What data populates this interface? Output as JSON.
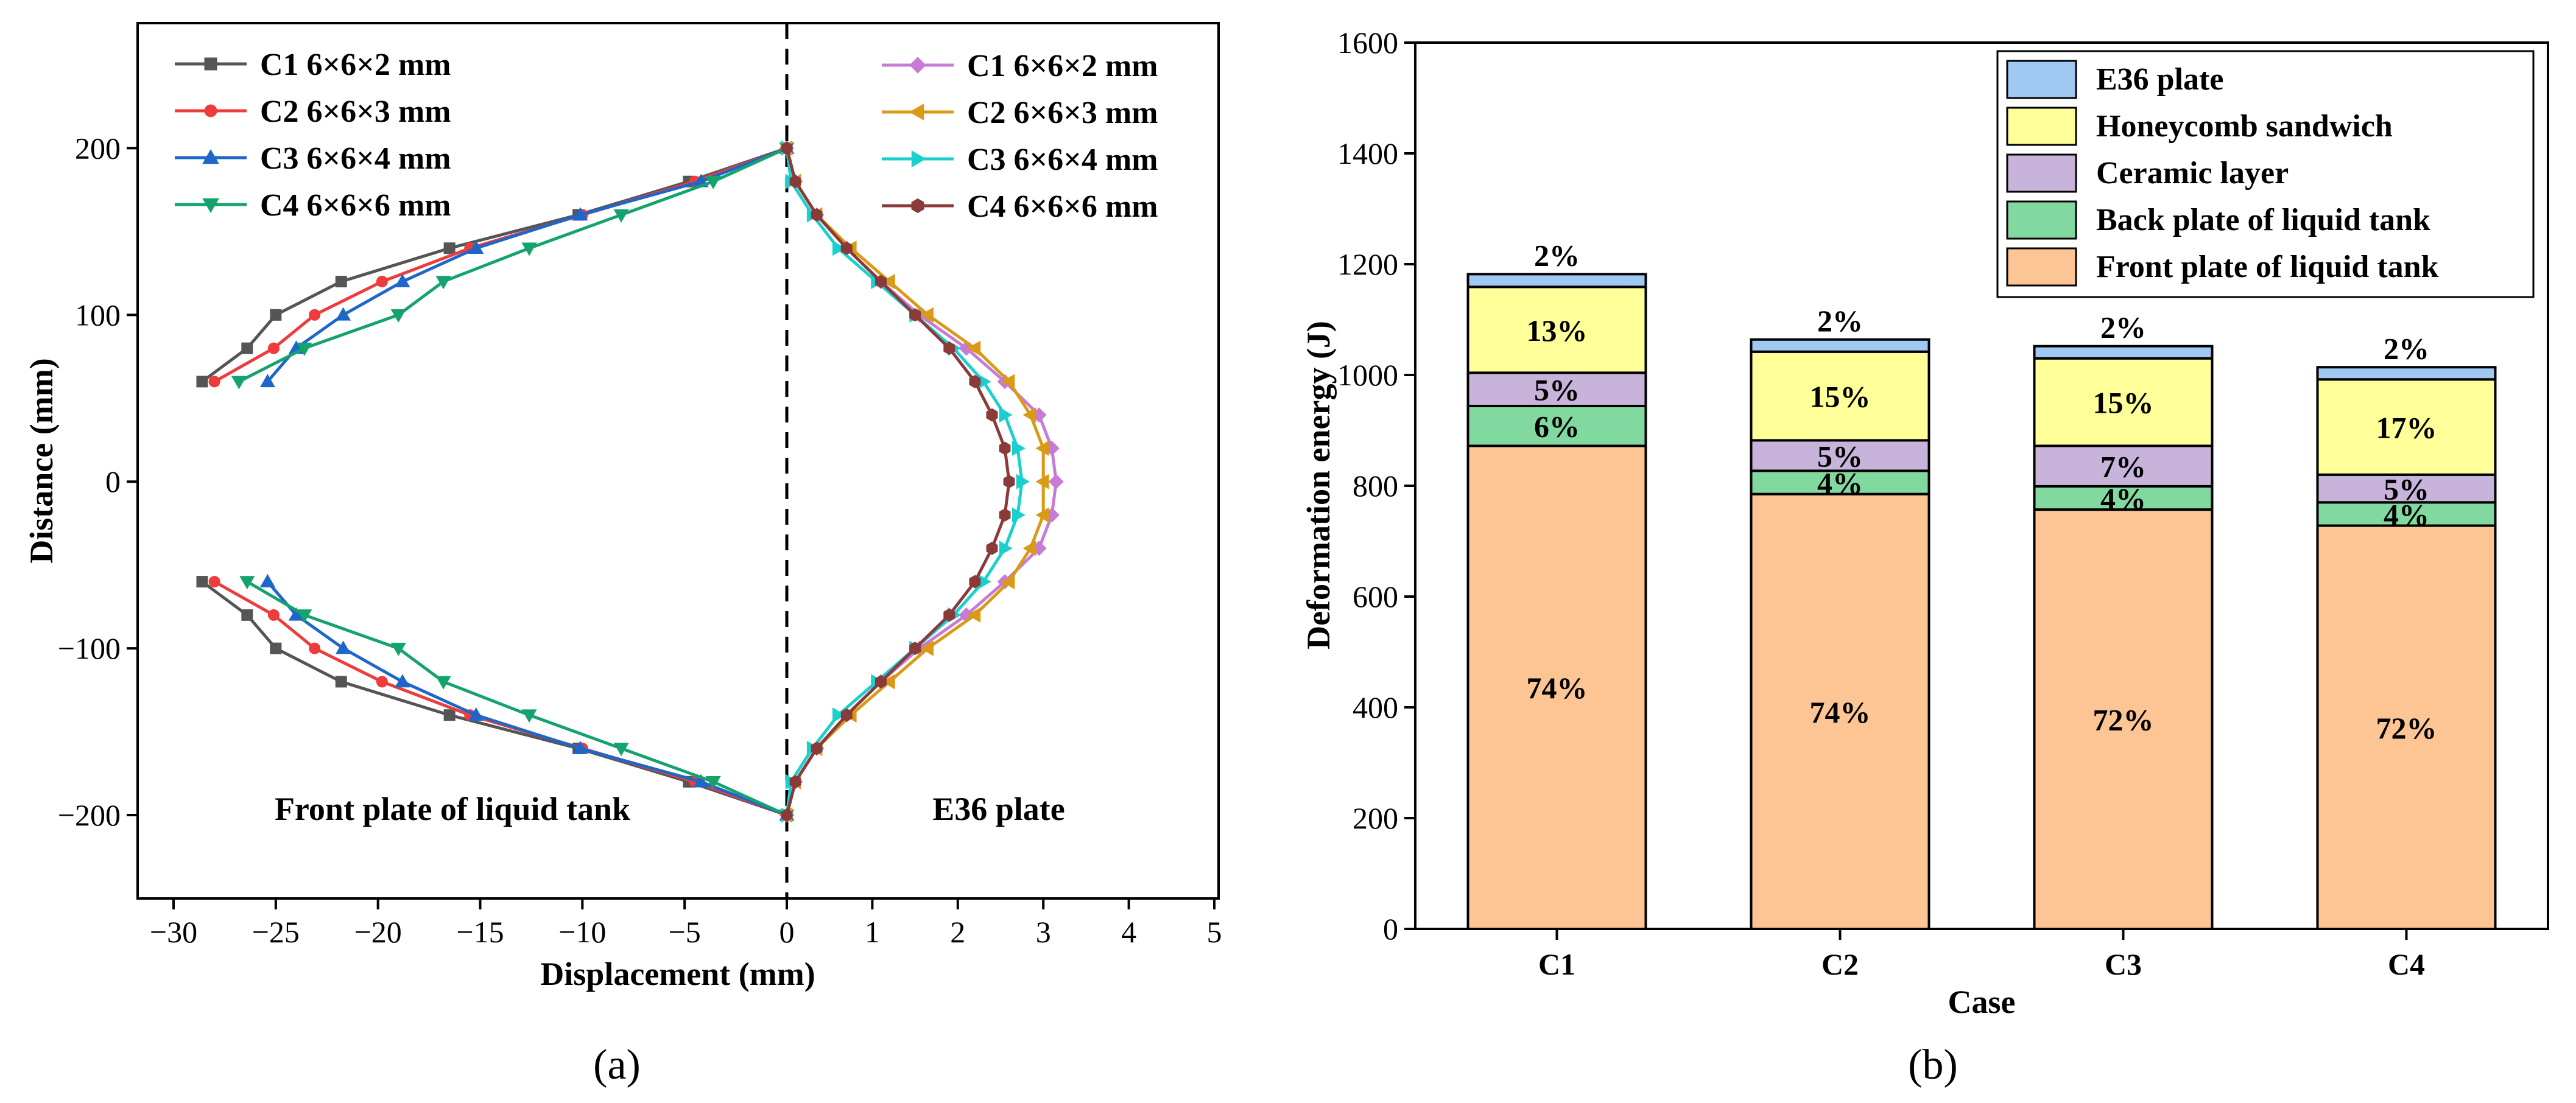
{
  "chart_data": [
    {
      "type": "line",
      "panel_label": "(a)",
      "xlabel": "Displacement (mm)",
      "ylabel": "Distance (mm)",
      "xlim": [
        -32,
        5
      ],
      "ylim": [
        -250,
        275
      ],
      "xticks": [
        -30,
        -25,
        -20,
        -15,
        -10,
        -5,
        0,
        1,
        2,
        3,
        4,
        5
      ],
      "xtick_labels": [
        "−30",
        "−25",
        "−20",
        "−15",
        "−10",
        "−5",
        "0",
        "1",
        "2",
        "3",
        "4",
        "5"
      ],
      "yticks": [
        -200,
        -100,
        0,
        100,
        200
      ],
      "ytick_labels": [
        "−200",
        "−100",
        "0",
        "100",
        "200"
      ],
      "annotations": [
        "Front plate of liquid tank",
        "E36 plate"
      ],
      "series": [
        {
          "name": "C1 6×6×2 mm",
          "side": "front",
          "color": "#555555",
          "marker": "square",
          "points": [
            [
              0,
              200
            ],
            [
              -4.8,
              180
            ],
            [
              -10.2,
              160
            ],
            [
              -16.5,
              140
            ],
            [
              -21.8,
              120
            ],
            [
              -25.0,
              100
            ],
            [
              -26.4,
              80
            ],
            [
              -28.6,
              60
            ],
            null,
            [
              -28.6,
              -60
            ],
            [
              -26.4,
              -80
            ],
            [
              -25.0,
              -100
            ],
            [
              -21.8,
              -120
            ],
            [
              -16.5,
              -140
            ],
            [
              -10.2,
              -160
            ],
            [
              -4.8,
              -180
            ],
            [
              0,
              -200
            ]
          ]
        },
        {
          "name": "C2 6×6×3 mm",
          "side": "front",
          "color": "#ee3b3b",
          "marker": "circle",
          "points": [
            [
              0,
              200
            ],
            [
              -4.5,
              180
            ],
            [
              -10.0,
              160
            ],
            [
              -15.5,
              140
            ],
            [
              -19.8,
              120
            ],
            [
              -23.1,
              100
            ],
            [
              -25.1,
              80
            ],
            [
              -28.0,
              60
            ],
            null,
            [
              -28.0,
              -60
            ],
            [
              -25.1,
              -80
            ],
            [
              -23.1,
              -100
            ],
            [
              -19.8,
              -120
            ],
            [
              -15.5,
              -140
            ],
            [
              -10.0,
              -160
            ],
            [
              -4.5,
              -180
            ],
            [
              0,
              -200
            ]
          ]
        },
        {
          "name": "C3 6×6×4 mm",
          "side": "front",
          "color": "#1f66c9",
          "marker": "triangle-up",
          "points": [
            [
              0,
              200
            ],
            [
              -4.2,
              180
            ],
            [
              -10.1,
              160
            ],
            [
              -15.2,
              140
            ],
            [
              -18.8,
              120
            ],
            [
              -21.7,
              100
            ],
            [
              -24.0,
              80
            ],
            [
              -25.4,
              60
            ],
            null,
            [
              -25.4,
              -60
            ],
            [
              -24.0,
              -80
            ],
            [
              -21.7,
              -100
            ],
            [
              -18.8,
              -120
            ],
            [
              -15.2,
              -140
            ],
            [
              -10.1,
              -160
            ],
            [
              -4.2,
              -180
            ],
            [
              0,
              -200
            ]
          ]
        },
        {
          "name": "C4 6×6×6 mm",
          "side": "front",
          "color": "#14a36d",
          "marker": "triangle-down",
          "points": [
            [
              0,
              200
            ],
            [
              -3.6,
              180
            ],
            [
              -8.1,
              160
            ],
            [
              -12.6,
              140
            ],
            [
              -16.8,
              120
            ],
            [
              -19.0,
              100
            ],
            [
              -23.6,
              80
            ],
            [
              -26.8,
              60
            ],
            null,
            [
              -26.4,
              -60
            ],
            [
              -23.6,
              -80
            ],
            [
              -19.0,
              -100
            ],
            [
              -16.8,
              -120
            ],
            [
              -12.6,
              -140
            ],
            [
              -8.1,
              -160
            ],
            [
              -3.6,
              -180
            ],
            [
              0,
              -200
            ]
          ]
        },
        {
          "name": "C1 6×6×2 mm",
          "side": "e36",
          "color": "#c77ad6",
          "marker": "diamond",
          "points": [
            [
              0,
              200
            ],
            [
              0.1,
              180
            ],
            [
              0.35,
              160
            ],
            [
              0.7,
              140
            ],
            [
              1.1,
              120
            ],
            [
              1.55,
              100
            ],
            [
              2.1,
              80
            ],
            [
              2.55,
              60
            ],
            [
              2.95,
              40
            ],
            [
              3.1,
              20
            ],
            [
              3.15,
              0
            ],
            [
              3.1,
              -20
            ],
            [
              2.95,
              -40
            ],
            [
              2.55,
              -60
            ],
            [
              2.1,
              -80
            ],
            [
              1.55,
              -100
            ],
            [
              1.1,
              -120
            ],
            [
              0.7,
              -140
            ],
            [
              0.35,
              -160
            ],
            [
              0.1,
              -180
            ],
            [
              0,
              -200
            ]
          ]
        },
        {
          "name": "C2 6×6×3 mm",
          "side": "e36",
          "color": "#d99a16",
          "marker": "triangle-left",
          "points": [
            [
              0,
              200
            ],
            [
              0.1,
              180
            ],
            [
              0.35,
              160
            ],
            [
              0.75,
              140
            ],
            [
              1.2,
              120
            ],
            [
              1.65,
              100
            ],
            [
              2.2,
              80
            ],
            [
              2.6,
              60
            ],
            [
              2.85,
              40
            ],
            [
              3.0,
              20
            ],
            [
              3.0,
              0
            ],
            [
              3.0,
              -20
            ],
            [
              2.85,
              -40
            ],
            [
              2.6,
              -60
            ],
            [
              2.2,
              -80
            ],
            [
              1.65,
              -100
            ],
            [
              1.2,
              -120
            ],
            [
              0.75,
              -140
            ],
            [
              0.35,
              -160
            ],
            [
              0.1,
              -180
            ],
            [
              0,
              -200
            ]
          ]
        },
        {
          "name": "C3 6×6×4 mm",
          "side": "e36",
          "color": "#1ad0cf",
          "marker": "triangle-right",
          "points": [
            [
              0,
              200
            ],
            [
              0.05,
              180
            ],
            [
              0.3,
              160
            ],
            [
              0.6,
              140
            ],
            [
              1.05,
              120
            ],
            [
              1.5,
              100
            ],
            [
              1.95,
              80
            ],
            [
              2.3,
              60
            ],
            [
              2.55,
              40
            ],
            [
              2.7,
              20
            ],
            [
              2.75,
              0
            ],
            [
              2.7,
              -20
            ],
            [
              2.55,
              -40
            ],
            [
              2.3,
              -60
            ],
            [
              1.95,
              -80
            ],
            [
              1.5,
              -100
            ],
            [
              1.05,
              -120
            ],
            [
              0.6,
              -140
            ],
            [
              0.3,
              -160
            ],
            [
              0.05,
              -180
            ],
            [
              0,
              -200
            ]
          ]
        },
        {
          "name": "C4 6×6×6 mm",
          "side": "e36",
          "color": "#8b3a3a",
          "marker": "hexagon",
          "points": [
            [
              0,
              200
            ],
            [
              0.1,
              180
            ],
            [
              0.35,
              160
            ],
            [
              0.7,
              140
            ],
            [
              1.1,
              120
            ],
            [
              1.5,
              100
            ],
            [
              1.9,
              80
            ],
            [
              2.2,
              60
            ],
            [
              2.4,
              40
            ],
            [
              2.55,
              20
            ],
            [
              2.6,
              0
            ],
            [
              2.55,
              -20
            ],
            [
              2.4,
              -40
            ],
            [
              2.2,
              -60
            ],
            [
              1.9,
              -80
            ],
            [
              1.5,
              -100
            ],
            [
              1.1,
              -120
            ],
            [
              0.7,
              -140
            ],
            [
              0.35,
              -160
            ],
            [
              0.1,
              -180
            ],
            [
              0,
              -200
            ]
          ]
        }
      ]
    },
    {
      "type": "bar",
      "stacked": true,
      "panel_label": "(b)",
      "xlabel": "Case",
      "ylabel": "Deformation energy (J)",
      "ylim": [
        0,
        1600
      ],
      "yticks": [
        0,
        200,
        400,
        600,
        800,
        1000,
        1200,
        1400,
        1600
      ],
      "categories": [
        "C1",
        "C2",
        "C3",
        "C4"
      ],
      "series": [
        {
          "name": "Front  plate of  liquid tank",
          "color": "#fdc593",
          "values": [
            872,
            785,
            757,
            728
          ],
          "labels": [
            "74%",
            "74%",
            "72%",
            "72%"
          ]
        },
        {
          "name": "Back  plate of  liquid tank",
          "color": "#82d99f",
          "values": [
            72,
            42,
            42,
            42
          ],
          "labels": [
            "6%",
            "4%",
            "4%",
            "4%"
          ]
        },
        {
          "name": "Ceramic layer",
          "color": "#c8b3da",
          "values": [
            60,
            55,
            73,
            50
          ],
          "labels": [
            "5%",
            "5%",
            "7%",
            "5%"
          ]
        },
        {
          "name": "Honeycomb sandwich",
          "color": "#ffff99",
          "values": [
            155,
            160,
            158,
            172
          ],
          "labels": [
            "13%",
            "15%",
            "15%",
            "17%"
          ]
        },
        {
          "name": "E36 plate",
          "color": "#9fc9f3",
          "values": [
            23,
            22,
            22,
            22
          ],
          "labels": [
            "2%",
            "2%",
            "2%",
            "2%"
          ]
        }
      ]
    }
  ]
}
